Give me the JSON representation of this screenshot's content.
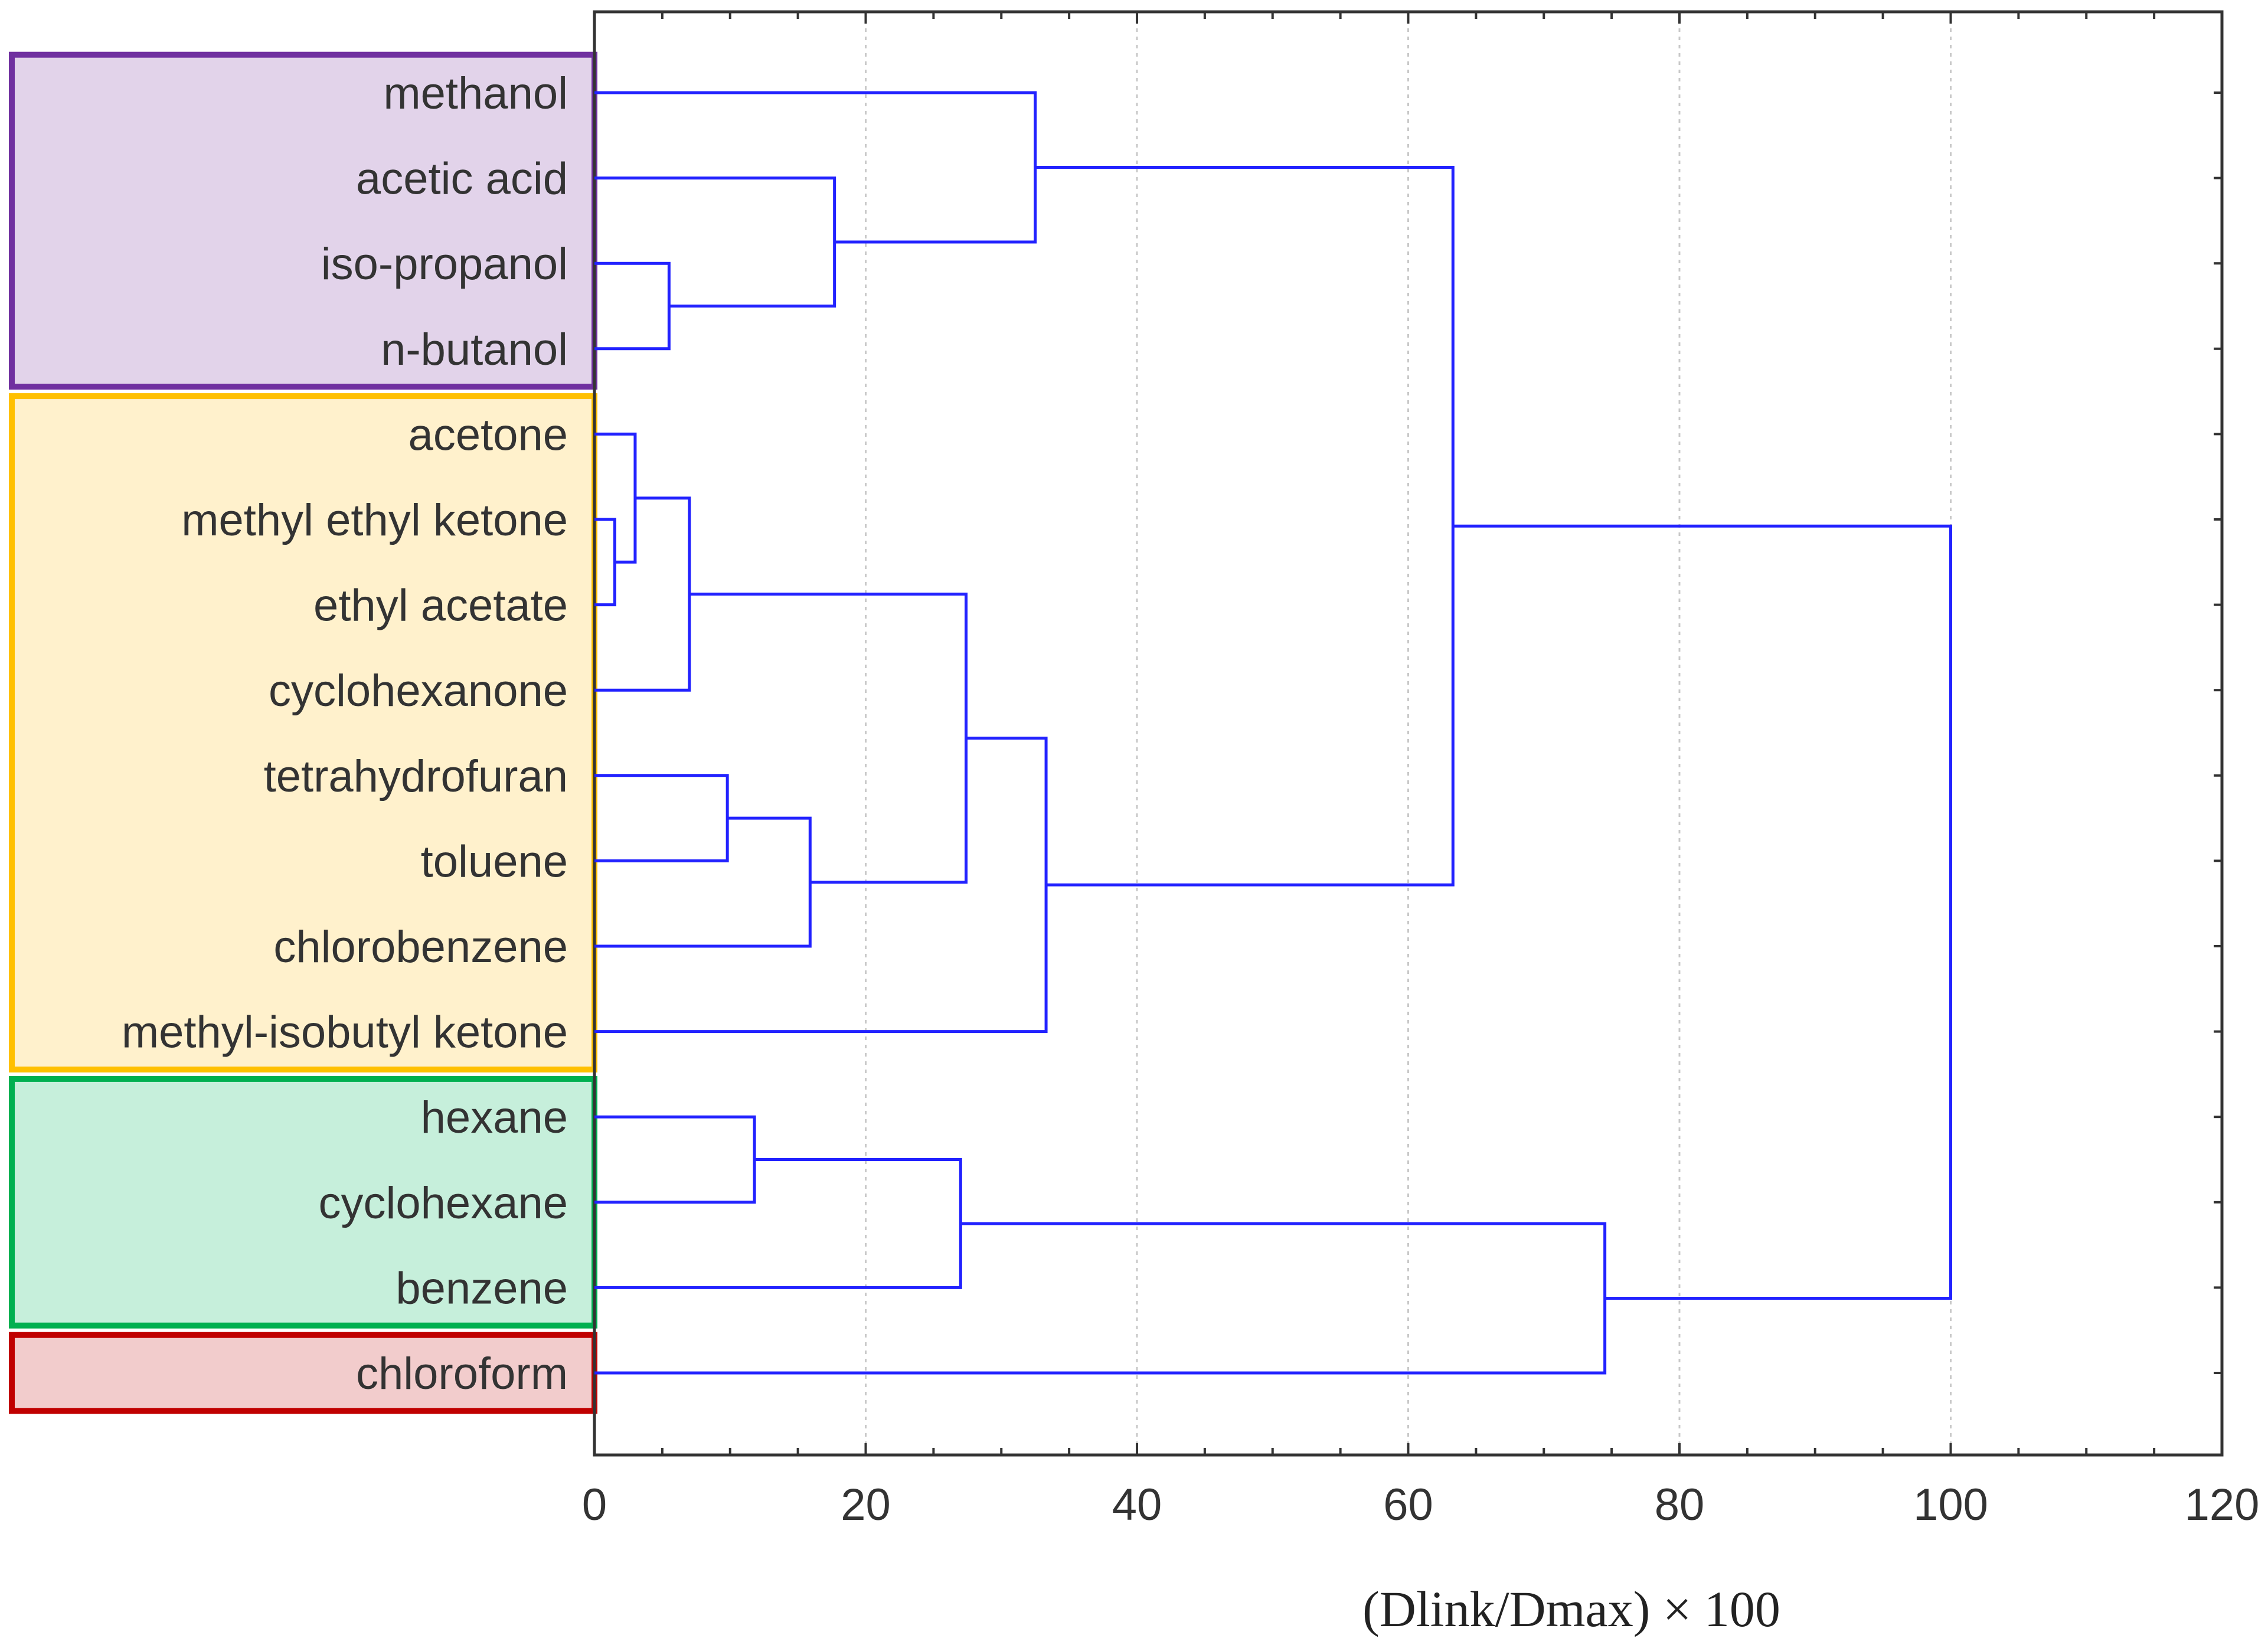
{
  "chart_data": {
    "type": "dendrogram",
    "title": "",
    "xlabel": "(Dlink/Dmax) × 100",
    "ylabel": "",
    "xlim": [
      0,
      120
    ],
    "x_ticks": [
      "0",
      "20",
      "40",
      "60",
      "80",
      "100",
      "120"
    ],
    "grid": "vertical dotted",
    "leaves": [
      "methanol",
      "acetic acid",
      "iso-propanol",
      "n-butanol",
      "acetone",
      "methyl ethyl ketone",
      "ethyl acetate",
      "cyclohexanone",
      "tetrahydrofuran",
      "toluene",
      "chlorobenzene",
      "methyl-isobutyl ketone",
      "hexane",
      "cyclohexane",
      "benzene",
      "chloroform"
    ],
    "merges": [
      {
        "a": "L5",
        "b": "L6",
        "height": 1.5
      },
      {
        "a": "L4",
        "b": "C1",
        "height": 3.0
      },
      {
        "a": "C2",
        "b": "L7",
        "height": 7.0
      },
      {
        "a": "L2",
        "b": "L3",
        "height": 5.5
      },
      {
        "a": "L1",
        "b": "C4",
        "height": 17.7
      },
      {
        "a": "L0",
        "b": "C5",
        "height": 32.5
      },
      {
        "a": "L8",
        "b": "L9",
        "height": 9.8
      },
      {
        "a": "C7",
        "b": "L10",
        "height": 15.9
      },
      {
        "a": "C3",
        "b": "C8",
        "height": 27.4
      },
      {
        "a": "C9",
        "b": "L11",
        "height": 33.3
      },
      {
        "a": "L12",
        "b": "L13",
        "height": 11.8
      },
      {
        "a": "C11",
        "b": "L14",
        "height": 27.0
      },
      {
        "a": "C6",
        "b": "C10",
        "height": 63.3
      },
      {
        "a": "C12",
        "b": "L15",
        "height": 74.5
      },
      {
        "a": "C13",
        "b": "C14",
        "height": 100.0
      }
    ],
    "groups": [
      {
        "name": "group-purple",
        "members": [
          "methanol",
          "acetic acid",
          "iso-propanol",
          "n-butanol"
        ],
        "fill": "#e2d3ea",
        "border": "#7030a0"
      },
      {
        "name": "group-orange",
        "members": [
          "acetone",
          "methyl ethyl ketone",
          "ethyl acetate",
          "cyclohexanone",
          "tetrahydrofuran",
          "toluene",
          "chlorobenzene",
          "methyl-isobutyl ketone"
        ],
        "fill": "#fff1cc",
        "border": "#ffc000"
      },
      {
        "name": "group-green",
        "members": [
          "hexane",
          "cyclohexane",
          "benzene"
        ],
        "fill": "#c6efdb",
        "border": "#00b050"
      },
      {
        "name": "group-red",
        "members": [
          "chloroform"
        ],
        "fill": "#f2cccc",
        "border": "#c00000"
      }
    ],
    "colors": {
      "link": "#2222ff",
      "axis": "#333333",
      "grid": "#c8c8c8",
      "text": "#333333"
    }
  }
}
